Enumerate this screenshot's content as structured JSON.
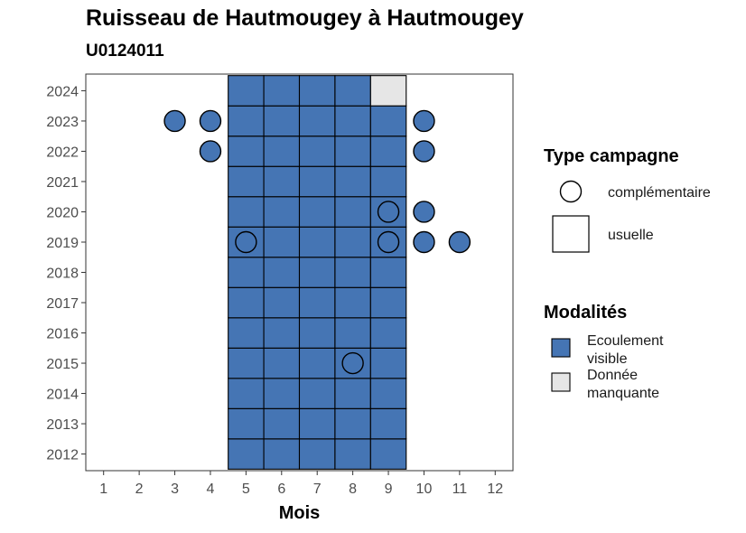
{
  "chart_data": {
    "type": "heatmap",
    "title": "Ruisseau de Hautmougey à Hautmougey",
    "subtitle": "U0124011",
    "xlabel": "Mois",
    "ylabel": "",
    "x_ticks": [
      1,
      2,
      3,
      4,
      5,
      6,
      7,
      8,
      9,
      10,
      11,
      12
    ],
    "y_ticks": [
      2012,
      2013,
      2014,
      2015,
      2016,
      2017,
      2018,
      2019,
      2020,
      2021,
      2022,
      2023,
      2024
    ],
    "xlim": [
      0.5,
      12.5
    ],
    "ylim": [
      2011.45,
      2024.55
    ],
    "colors": {
      "Ecoulement visible": "#4575b4",
      "Donnée manquante": "#e6e6e6"
    },
    "usuelle": [
      {
        "year": 2012,
        "months": [
          5,
          6,
          7,
          8,
          9
        ],
        "modalite": "Ecoulement visible"
      },
      {
        "year": 2013,
        "months": [
          5,
          6,
          7,
          8,
          9
        ],
        "modalite": "Ecoulement visible"
      },
      {
        "year": 2014,
        "months": [
          5,
          6,
          7,
          8,
          9
        ],
        "modalite": "Ecoulement visible"
      },
      {
        "year": 2015,
        "months": [
          5,
          6,
          7,
          8,
          9
        ],
        "modalite": "Ecoulement visible"
      },
      {
        "year": 2016,
        "months": [
          5,
          6,
          7,
          8,
          9
        ],
        "modalite": "Ecoulement visible"
      },
      {
        "year": 2017,
        "months": [
          5,
          6,
          7,
          8,
          9
        ],
        "modalite": "Ecoulement visible"
      },
      {
        "year": 2018,
        "months": [
          5,
          6,
          7,
          8,
          9
        ],
        "modalite": "Ecoulement visible"
      },
      {
        "year": 2019,
        "months": [
          5,
          6,
          7,
          8,
          9
        ],
        "modalite": "Ecoulement visible"
      },
      {
        "year": 2020,
        "months": [
          5,
          6,
          7,
          8,
          9
        ],
        "modalite": "Ecoulement visible"
      },
      {
        "year": 2021,
        "months": [
          5,
          6,
          7,
          8,
          9
        ],
        "modalite": "Ecoulement visible"
      },
      {
        "year": 2022,
        "months": [
          5,
          6,
          7,
          8,
          9
        ],
        "modalite": "Ecoulement visible"
      },
      {
        "year": 2023,
        "months": [
          5,
          6,
          7,
          8,
          9
        ],
        "modalite": "Ecoulement visible"
      },
      {
        "year": 2024,
        "months": [
          5,
          6,
          7,
          8
        ],
        "modalite": "Ecoulement visible"
      },
      {
        "year": 2024,
        "months": [
          9
        ],
        "modalite": "Donnée manquante"
      }
    ],
    "complementaire": [
      {
        "year": 2023,
        "month": 3,
        "modalite": "Ecoulement visible"
      },
      {
        "year": 2023,
        "month": 4,
        "modalite": "Ecoulement visible"
      },
      {
        "year": 2023,
        "month": 10,
        "modalite": "Ecoulement visible"
      },
      {
        "year": 2022,
        "month": 4,
        "modalite": "Ecoulement visible"
      },
      {
        "year": 2022,
        "month": 10,
        "modalite": "Ecoulement visible"
      },
      {
        "year": 2020,
        "month": 9,
        "modalite": "Ecoulement visible"
      },
      {
        "year": 2020,
        "month": 10,
        "modalite": "Ecoulement visible"
      },
      {
        "year": 2019,
        "month": 5,
        "modalite": "Ecoulement visible"
      },
      {
        "year": 2019,
        "month": 9,
        "modalite": "Ecoulement visible"
      },
      {
        "year": 2019,
        "month": 10,
        "modalite": "Ecoulement visible"
      },
      {
        "year": 2019,
        "month": 11,
        "modalite": "Ecoulement visible"
      },
      {
        "year": 2015,
        "month": 8,
        "modalite": "Ecoulement visible"
      }
    ],
    "legend_type": {
      "title": "Type campagne",
      "items": [
        {
          "shape": "circle",
          "label": "complémentaire"
        },
        {
          "shape": "square",
          "label": "usuelle"
        }
      ]
    },
    "legend_modalite": {
      "title": "Modalités",
      "items": [
        {
          "key": "Ecoulement visible",
          "lines": [
            "Ecoulement",
            "visible"
          ]
        },
        {
          "key": "Donnée manquante",
          "lines": [
            "Donnée",
            "manquante"
          ]
        }
      ]
    },
    "grid": false,
    "legend_position": "right"
  }
}
